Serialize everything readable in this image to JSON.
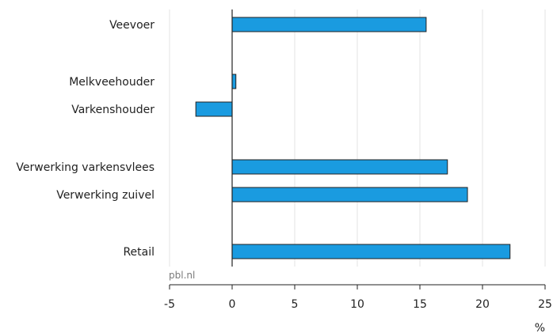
{
  "chart_data": {
    "type": "bar",
    "orientation": "horizontal",
    "categories": [
      "Veevoer",
      "Melkveehouder",
      "Varkenshouder",
      "Verwerking varkensvlees",
      "Verwerking zuivel",
      "Retail"
    ],
    "values": [
      15.5,
      0.3,
      -2.9,
      17.2,
      18.8,
      22.2
    ],
    "groups": [
      [
        0
      ],
      [
        1,
        2
      ],
      [
        3,
        4
      ],
      [
        5
      ]
    ],
    "xlim": [
      -5,
      25
    ],
    "xticks": [
      -5,
      0,
      5,
      10,
      15,
      20,
      25
    ],
    "xtick_labels": [
      "-5",
      "0",
      "5",
      "10",
      "15",
      "20",
      "25"
    ],
    "xlabel": "%",
    "title": "",
    "ylabel": "",
    "grid": true,
    "bar_color": "#1a9be0",
    "bar_edge_color": "#222222",
    "grid_color": "#e3e3e3",
    "axis_color": "#222222"
  },
  "source": "pbl.nl"
}
